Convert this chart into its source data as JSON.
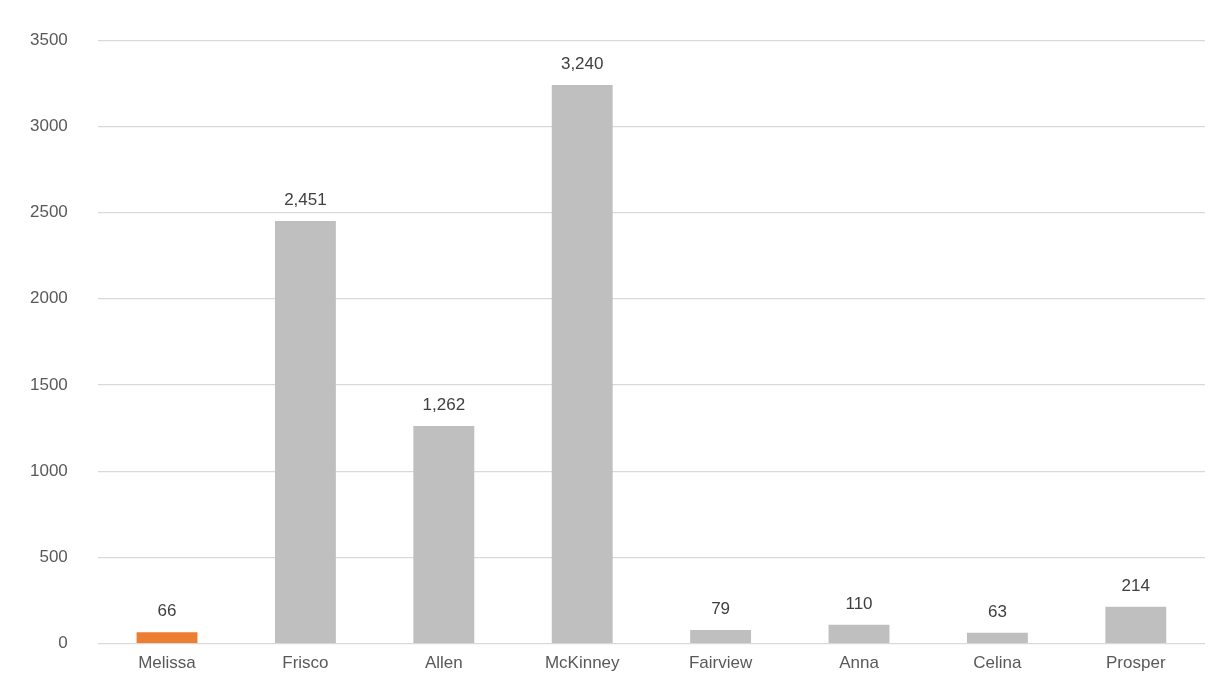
{
  "chart_data": {
    "type": "bar",
    "categories": [
      "Melissa",
      "Frisco",
      "Allen",
      "McKinney",
      "Fairview",
      "Anna",
      "Celina",
      "Prosper"
    ],
    "values": [
      66,
      2451,
      1262,
      3240,
      79,
      110,
      63,
      214
    ],
    "colors": [
      "#ed7d31",
      "#bfbfbf",
      "#bfbfbf",
      "#bfbfbf",
      "#bfbfbf",
      "#bfbfbf",
      "#bfbfbf",
      "#bfbfbf"
    ],
    "value_labels": [
      "66",
      "2,451",
      "1,262",
      "3,240",
      "79",
      "110",
      "63",
      "214"
    ],
    "ylim": [
      0,
      3500
    ],
    "yticks": [
      0,
      500,
      1000,
      1500,
      2000,
      2500,
      3000,
      3500
    ],
    "grid": "y",
    "legend": false
  }
}
